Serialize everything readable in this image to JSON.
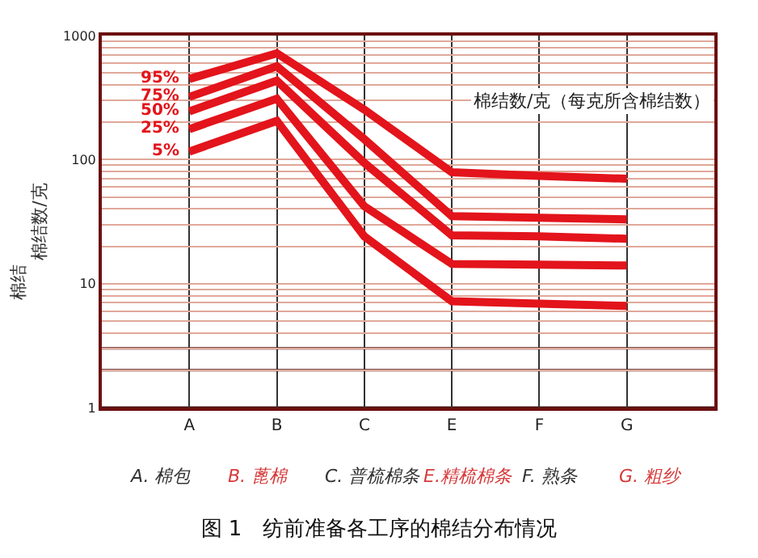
{
  "chart_data": {
    "type": "line",
    "title": "图 1　纺前准备各工序的棉结分布情况",
    "ylabel": "棉结数/克",
    "categories": [
      "A",
      "B",
      "C",
      "E",
      "F",
      "G"
    ],
    "series": [
      {
        "name": "95%",
        "color": "#e3141b",
        "values": [
          447,
          720,
          253,
          79,
          74,
          70
        ]
      },
      {
        "name": "75%",
        "color": "#e3141b",
        "values": [
          320,
          565,
          146,
          35,
          34,
          33
        ]
      },
      {
        "name": "50%",
        "color": "#e3141b",
        "values": [
          245,
          433,
          94,
          24.5,
          24,
          23
        ]
      },
      {
        "name": "25%",
        "color": "#e3141b",
        "values": [
          176,
          310,
          42,
          14.4,
          14.2,
          14
        ]
      },
      {
        "name": "5%",
        "color": "#e3141b",
        "values": [
          116,
          205,
          24,
          7.2,
          6.9,
          6.6
        ]
      }
    ],
    "annotations": [
      "棉结数/克（每克所含棉结数）",
      "棉结",
      "A. 棉包",
      "B. 蓖棉",
      "C. 普梳棉条",
      "E.精梳棉条",
      "F. 熟条",
      "G. 粗纱"
    ],
    "ylim": [
      1,
      1000
    ],
    "yticks": [
      1,
      {
        "value": 2,
        "label": null
      },
      {
        "value": 3,
        "label": null
      },
      {
        "value": 4,
        "label": null
      },
      {
        "value": 5,
        "label": null
      },
      {
        "value": 6,
        "label": null
      },
      {
        "value": 7,
        "label": null
      },
      {
        "value": 8,
        "label": null
      },
      {
        "value": 9,
        "label": null
      },
      10,
      {
        "value": 20,
        "label": null
      },
      {
        "value": 30,
        "label": null
      },
      {
        "value": 40,
        "label": null
      },
      {
        "value": 50,
        "label": null
      },
      {
        "value": 60,
        "label": null
      },
      {
        "value": 70,
        "label": null
      },
      {
        "value": 80,
        "label": null
      },
      {
        "value": 90,
        "label": null
      },
      100,
      {
        "value": 200,
        "label": null
      },
      {
        "value": 300,
        "label": null
      },
      {
        "value": 400,
        "label": null
      },
      {
        "value": 500,
        "label": null
      },
      {
        "value": 600,
        "label": null
      },
      {
        "value": 700,
        "label": null
      },
      {
        "value": 800,
        "label": null
      },
      {
        "value": 900,
        "label": null
      },
      1000
    ],
    "log": true,
    "grid": true,
    "legend": false,
    "marker": "none",
    "line_style": "solid"
  }
}
